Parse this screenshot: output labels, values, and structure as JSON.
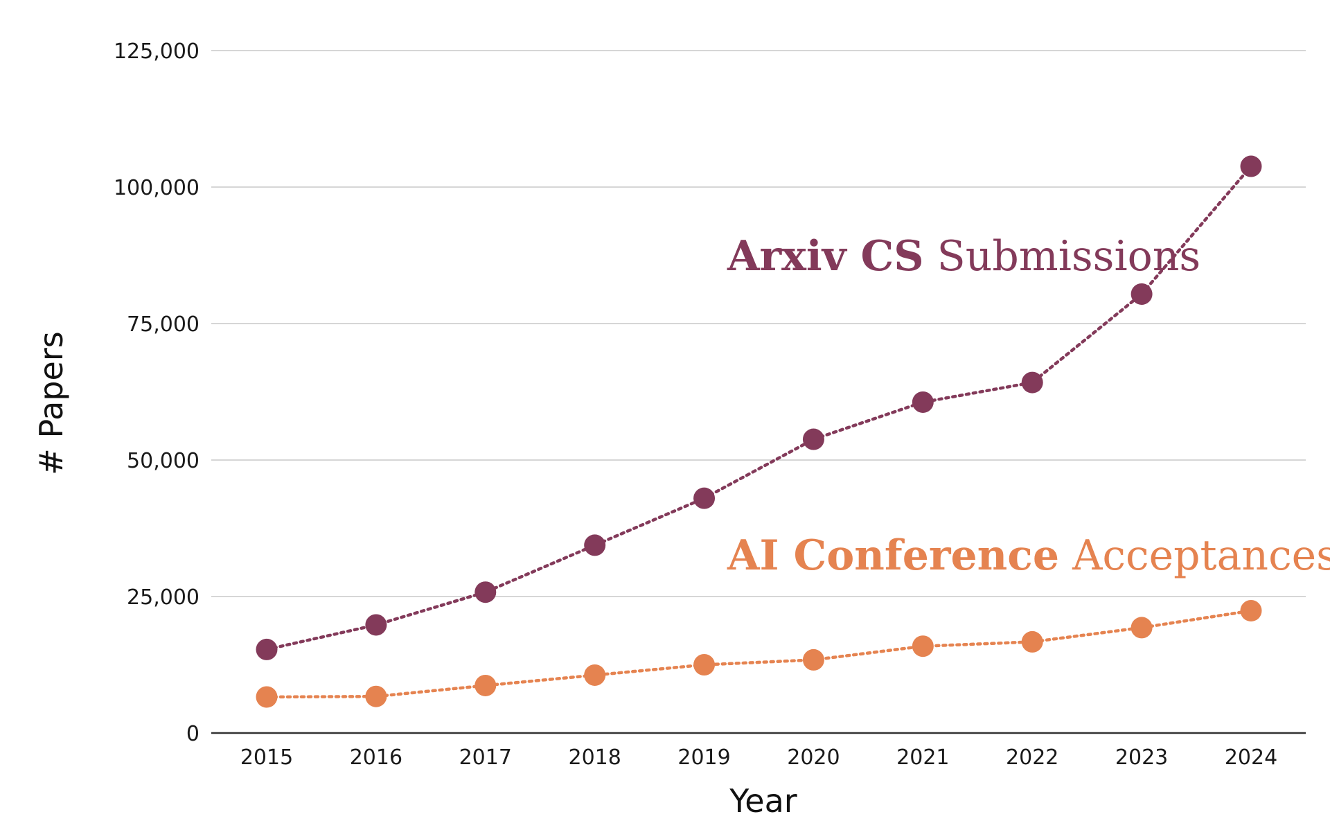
{
  "chart_data": {
    "type": "line",
    "title": "",
    "xlabel": "Year",
    "ylabel": "# Papers",
    "ylim": [
      0,
      125000
    ],
    "yticks": [
      0,
      25000,
      50000,
      75000,
      100000,
      125000
    ],
    "ytick_labels": [
      "0",
      "25,000",
      "50,000",
      "75,000",
      "100,000",
      "125,000"
    ],
    "categories": [
      "2015",
      "2016",
      "2017",
      "2018",
      "2019",
      "2020",
      "2021",
      "2022",
      "2023",
      "2024"
    ],
    "grid": "horizontal",
    "series": [
      {
        "name": "Arxiv CS Submissions",
        "label_bold": "Arxiv CS",
        "label_regular": "Submissions",
        "color": "#833a5a",
        "values": [
          15300,
          19800,
          25800,
          34400,
          43000,
          53800,
          60600,
          64200,
          80400,
          103800
        ]
      },
      {
        "name": "AI Conference Acceptances",
        "label_bold": "AI Conference",
        "label_regular": "Acceptances",
        "color": "#e58350",
        "values": [
          6600,
          6700,
          8700,
          10600,
          12500,
          13400,
          15900,
          16700,
          19300,
          22400
        ]
      }
    ]
  }
}
